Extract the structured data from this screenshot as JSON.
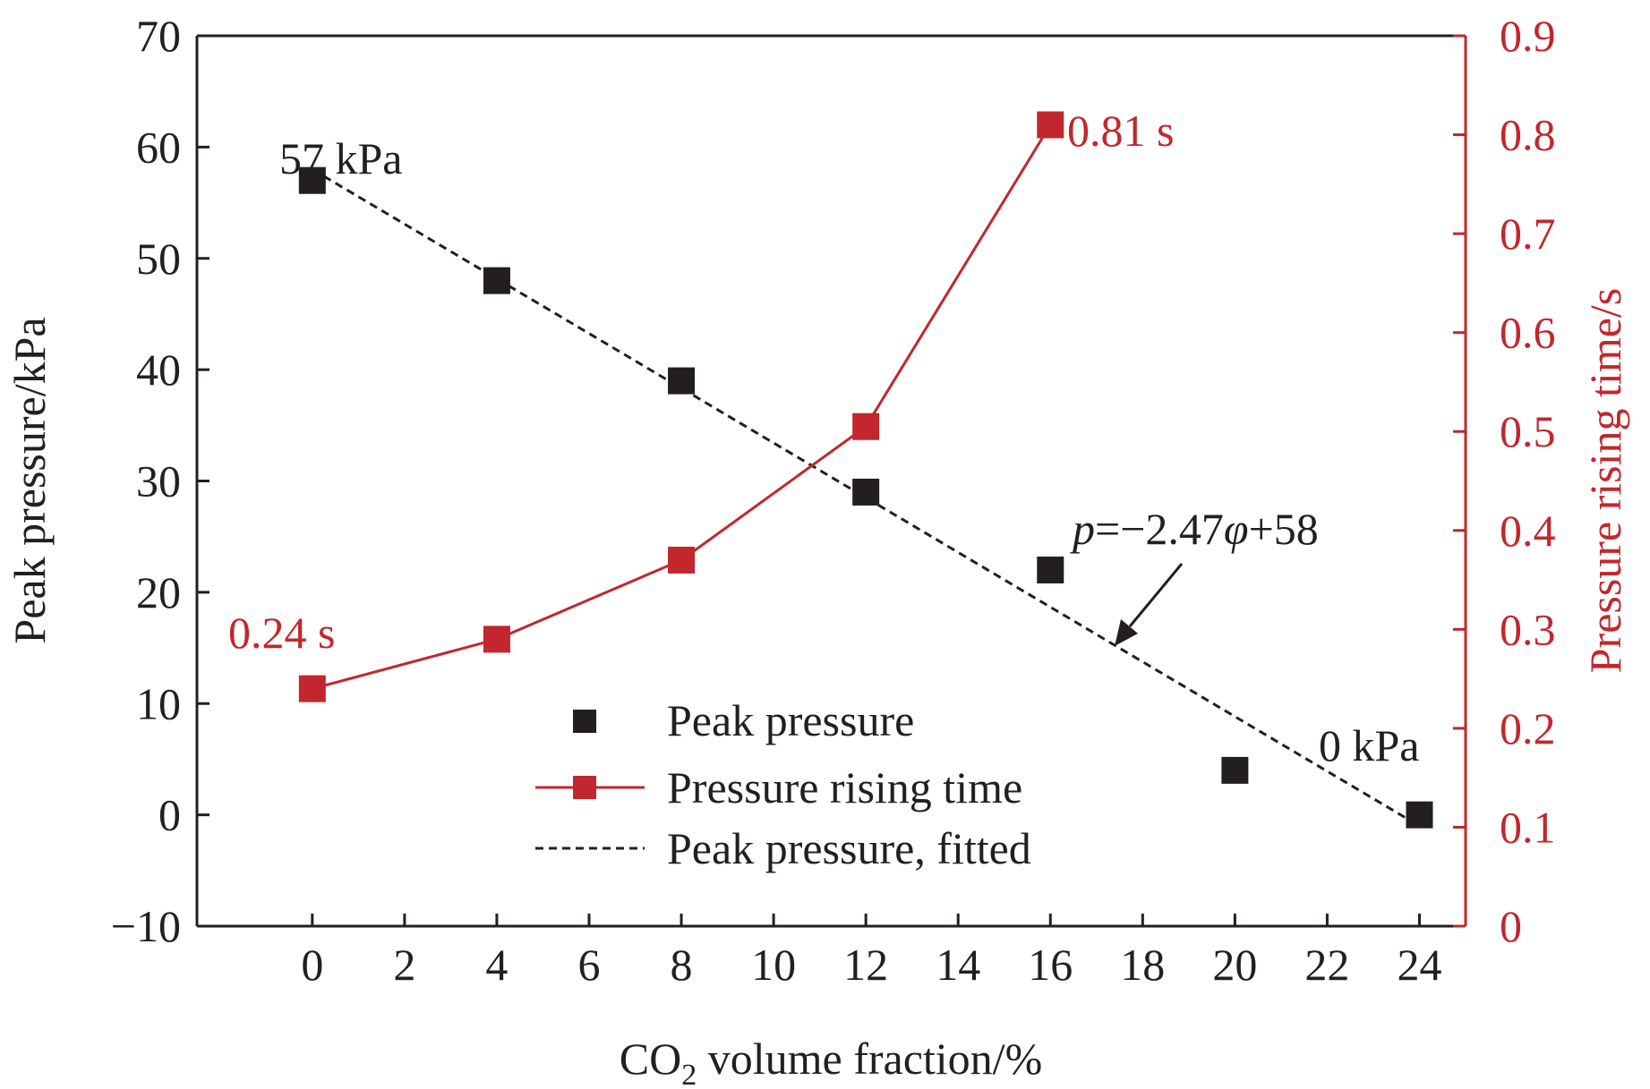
{
  "chart_data": {
    "type": "line",
    "title": "",
    "xlabel": {
      "prefix": "CO",
      "subscript": "2",
      "suffix": " volume fraction/%"
    },
    "ylabel": "Peak pressure/kPa",
    "y2label": "Pressure rising time/s",
    "xlim": [
      -2.5,
      25
    ],
    "ylim": [
      -10,
      70
    ],
    "y2lim": [
      0,
      0.9
    ],
    "x_ticks": [
      "0",
      "2",
      "4",
      "6",
      "8",
      "10",
      "12",
      "14",
      "16",
      "18",
      "20",
      "22",
      "24"
    ],
    "y_ticks": [
      "−10",
      "0",
      "10",
      "20",
      "30",
      "40",
      "50",
      "60",
      "70"
    ],
    "y2_ticks": [
      "0",
      "0.1",
      "0.2",
      "0.3",
      "0.4",
      "0.5",
      "0.6",
      "0.7",
      "0.8",
      "0.9"
    ],
    "series": [
      {
        "name": "Peak pressure",
        "axis": "left",
        "style": "markers",
        "color": "#231f20",
        "x": [
          0,
          4,
          8,
          12,
          16,
          20,
          24
        ],
        "y": [
          57,
          48,
          39,
          29,
          22,
          4,
          0
        ]
      },
      {
        "name": "Pressure rising time",
        "axis": "right",
        "style": "line+markers",
        "color": "#c1272d",
        "x": [
          0,
          4,
          8,
          12,
          16
        ],
        "y": [
          0.24,
          0.29,
          0.37,
          0.505,
          0.81
        ]
      },
      {
        "name": "Peak pressure, fitted",
        "axis": "left",
        "style": "dashed",
        "color": "#231f20",
        "x": [
          0,
          24
        ],
        "y": [
          58,
          -1
        ]
      }
    ],
    "annotations": {
      "peak_start": "57 kPa",
      "peak_end": "0 kPa",
      "time_start": "0.24 s",
      "time_end": "0.81 s",
      "equation": {
        "var": "p",
        "mid": "=−2.47",
        "phi": "φ",
        "tail": "+58"
      }
    },
    "legend": {
      "placement": "bottom-center",
      "items": [
        "Peak pressure",
        "Pressure rising time",
        "Peak pressure, fitted"
      ]
    },
    "grid": false,
    "colors": {
      "left_axis": "#231f20",
      "right_axis": "#c1272d"
    }
  }
}
